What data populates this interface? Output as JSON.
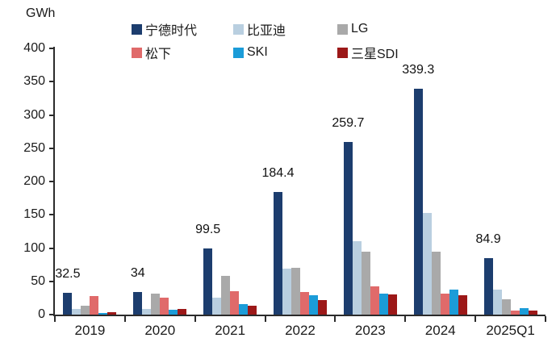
{
  "chart_data": {
    "type": "bar",
    "title": "",
    "unit_label": "GWh",
    "categories": [
      "2019",
      "2020",
      "2021",
      "2022",
      "2023",
      "2024",
      "2025Q1"
    ],
    "series": [
      {
        "name": "宁德时代",
        "color": "#1C3D6E",
        "values": [
          32.5,
          34,
          99.5,
          184.4,
          259.7,
          339.3,
          84.9
        ]
      },
      {
        "name": "比亚迪",
        "color": "#B9CFE0",
        "values": [
          8,
          9,
          25,
          69,
          110,
          153,
          37
        ]
      },
      {
        "name": "LG",
        "color": "#A9A9A9",
        "values": [
          13,
          31,
          58,
          70,
          94,
          95,
          23
        ]
      },
      {
        "name": "松下",
        "color": "#E06A6A",
        "values": [
          28,
          25,
          35,
          34,
          43,
          32,
          6
        ]
      },
      {
        "name": "SKI",
        "color": "#1B9CD8",
        "values": [
          2,
          7,
          16,
          29,
          32,
          38,
          10
        ]
      },
      {
        "name": "三星SDI",
        "color": "#9C1818",
        "values": [
          4,
          8,
          13,
          22,
          30,
          29,
          6
        ]
      }
    ],
    "bar_labels": {
      "series": "宁德时代",
      "values": [
        "32.5",
        "34",
        "99.5",
        "184.4",
        "259.7",
        "339.3",
        "84.9"
      ]
    },
    "ylim": [
      0,
      400
    ],
    "yticks": [
      0,
      50,
      100,
      150,
      200,
      250,
      300,
      350,
      400
    ],
    "grid": false,
    "legend_position": "top",
    "axis_color": "#2b2b2b",
    "text_color": "#1a1a1a"
  }
}
